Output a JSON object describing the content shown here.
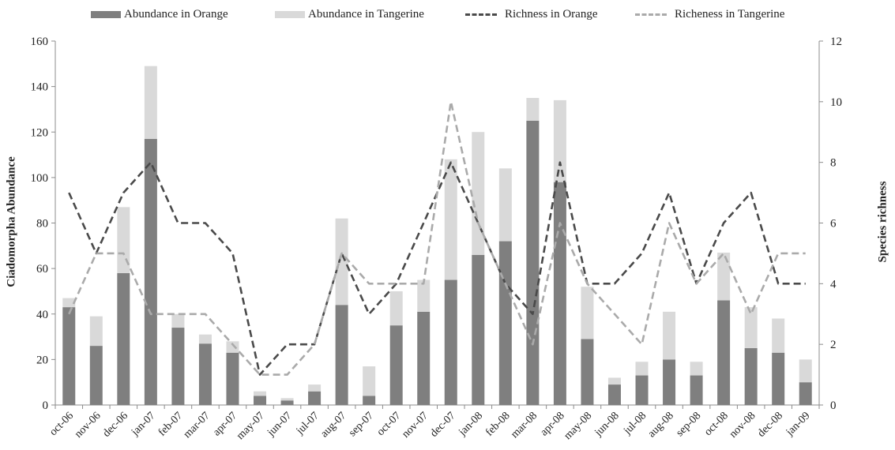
{
  "chart_data": {
    "type": "bar",
    "title": "",
    "categories": [
      "oct-06",
      "nov-06",
      "dec-06",
      "jan-07",
      "feb-07",
      "mar-07",
      "apr-07",
      "may-07",
      "jun-07",
      "jul-07",
      "aug-07",
      "sep-07",
      "oct-07",
      "nov-07",
      "dec-07",
      "jan-08",
      "feb-08",
      "mar-08",
      "apr-08",
      "may-08",
      "jun-08",
      "jul-08",
      "aug-08",
      "sep-08",
      "oct-08",
      "nov-08",
      "dec-08",
      "jan-09"
    ],
    "stacked_bars": [
      {
        "name": "Abundance in Orange",
        "color": "#7f7f7f",
        "values": [
          43,
          26,
          58,
          117,
          34,
          27,
          23,
          4,
          2,
          6,
          44,
          4,
          35,
          41,
          55,
          66,
          72,
          125,
          98,
          29,
          9,
          13,
          20,
          13,
          46,
          25,
          23,
          10
        ]
      },
      {
        "name": "Abundance in Tangerine",
        "color": "#d9d9d9",
        "values": [
          4,
          13,
          29,
          32,
          6,
          4,
          5,
          2,
          1,
          3,
          38,
          13,
          15,
          14,
          53,
          54,
          32,
          10,
          36,
          23,
          3,
          6,
          21,
          6,
          21,
          18,
          15,
          10
        ]
      }
    ],
    "lines": [
      {
        "name": "Richness in Orange",
        "color": "#4a4a4a",
        "axis": "right",
        "values": [
          7,
          5,
          7,
          8,
          6,
          6,
          5,
          1,
          2,
          2,
          5,
          3,
          4,
          6,
          8,
          6,
          4,
          3,
          8,
          4,
          4,
          5,
          7,
          4,
          6,
          7,
          4,
          4
        ]
      },
      {
        "name": "Richeness in Tangerine",
        "color": "#aaaaaa",
        "axis": "right",
        "values": [
          3,
          5,
          5,
          3,
          3,
          3,
          2,
          1,
          1,
          2,
          5,
          4,
          4,
          4,
          10,
          6,
          4,
          2,
          6,
          4,
          3,
          2,
          6,
          4,
          5,
          3,
          5,
          5
        ]
      }
    ],
    "ylabel": "Ciadomorpha Abundance",
    "ylabel_right": "Species richness",
    "ylim": [
      0,
      160
    ],
    "yticks": [
      0,
      20,
      40,
      60,
      80,
      100,
      120,
      140,
      160
    ],
    "ylim_right": [
      0,
      12
    ],
    "yticks_right": [
      0,
      2,
      4,
      6,
      8,
      10,
      12
    ],
    "grid": false,
    "legend_position": "top"
  }
}
